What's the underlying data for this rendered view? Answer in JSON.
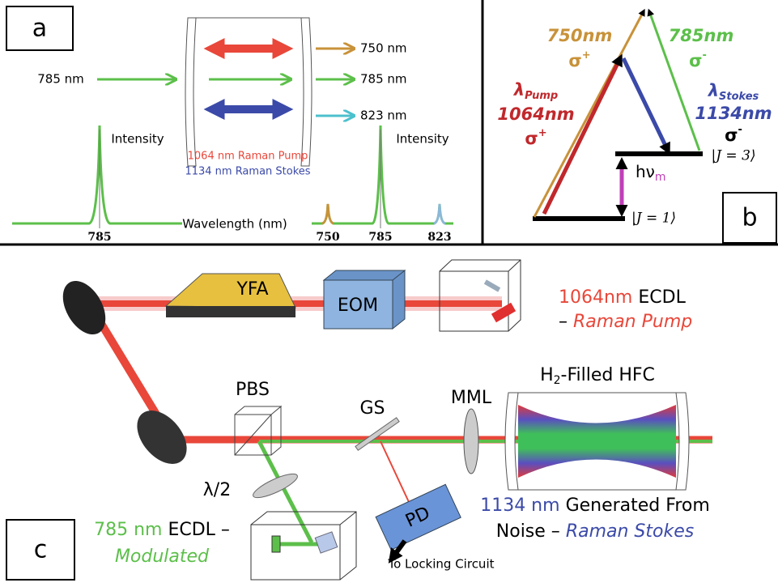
{
  "panel_a": {
    "label": "a",
    "input": "785 nm",
    "outputs": [
      "750 nm",
      "785 nm",
      "823 nm"
    ],
    "intensity_left": "Intensity",
    "intensity_right": "Intensity",
    "pump": "1064 nm Raman Pump",
    "stokes": "1134 nm Raman Stokes",
    "x_axis": "Wavelength (nm)",
    "left_tick": "785",
    "right_ticks": [
      "750",
      "785",
      "823"
    ]
  },
  "panel_b": {
    "label": "b",
    "anti_stokes": {
      "wavelength": "750nm",
      "pol": "σ",
      "sign": "+"
    },
    "probe": {
      "wavelength": "785nm",
      "pol": "σ",
      "sign": "-"
    },
    "pump": {
      "symbol": "λ",
      "sub": "Pump",
      "wavelength": "1064nm",
      "pol": "σ",
      "sign": "+"
    },
    "stokes": {
      "symbol": "λ",
      "sub": "Stokes",
      "wavelength": "1134nm",
      "pol": "σ",
      "sign": "-"
    },
    "upper_level": "|J = 3⟩",
    "lower_level": "|J = 1⟩",
    "energy": {
      "symbol": "hν",
      "sub": "m"
    }
  },
  "panel_c": {
    "label": "c",
    "yfa": "YFA",
    "eom": "EOM",
    "pump_laser": {
      "name": "1064nm",
      "type": "ECDL",
      "dash": "–",
      "role": "Raman Pump"
    },
    "pbs": "PBS",
    "gs": "GS",
    "mml": "MML",
    "hfc": {
      "pre": "H",
      "sub": "2",
      "post": "-Filled HFC"
    },
    "waveplate": "λ/2",
    "pd": "PD",
    "locking": "To Locking Circuit",
    "probe_laser": {
      "name": "785 nm",
      "type": "ECDL –",
      "role": "Modulated"
    },
    "stokes": {
      "name": "1134 nm",
      "line1": "Generated From",
      "line2": "Noise –",
      "role": "Raman Stokes"
    }
  }
}
